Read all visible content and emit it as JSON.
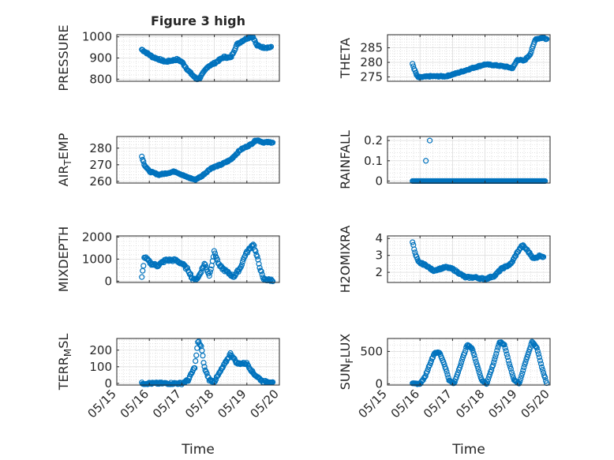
{
  "figure_title": "Figure 3 high",
  "shared_xlabel": "Time",
  "shared_xticks": [
    "05/15",
    "05/16",
    "05/17",
    "05/18",
    "05/19",
    "05/20"
  ],
  "marker_color": "#0072bd",
  "chart_data": [
    {
      "type": "scatter",
      "title": "Figure 3 high",
      "ylabel": "PRESSURE",
      "ylabel_sub": "",
      "ylim": [
        790,
        1010
      ],
      "yticks": [
        800,
        900,
        1000
      ],
      "yticklabels": [
        "800",
        "900",
        "1000"
      ],
      "xlim": [
        0,
        5
      ],
      "grid": true,
      "show_xticklabels": false,
      "keys": [
        [
          0.77,
          940
        ],
        [
          1.1,
          905
        ],
        [
          1.5,
          882
        ],
        [
          1.85,
          893
        ],
        [
          2.0,
          882
        ],
        [
          2.2,
          840
        ],
        [
          2.45,
          800
        ],
        [
          2.55,
          805
        ],
        [
          2.8,
          860
        ],
        [
          3.0,
          875
        ],
        [
          3.3,
          905
        ],
        [
          3.5,
          900
        ],
        [
          3.7,
          965
        ],
        [
          3.9,
          985
        ],
        [
          4.1,
          1000
        ],
        [
          4.2,
          998
        ],
        [
          4.3,
          960
        ],
        [
          4.5,
          950
        ],
        [
          4.75,
          950
        ]
      ],
      "noise": 4
    },
    {
      "type": "scatter",
      "title": "",
      "ylabel": "THETA",
      "ylabel_sub": "",
      "ylim": [
        273.5,
        289.5
      ],
      "yticks": [
        275,
        280,
        285
      ],
      "yticklabels": [
        "275",
        "280",
        "285"
      ],
      "xlim": [
        0,
        5
      ],
      "grid": true,
      "show_xticklabels": false,
      "keys": [
        [
          0.77,
          279.5
        ],
        [
          0.83,
          277.5
        ],
        [
          0.9,
          275.5
        ],
        [
          0.95,
          274.8
        ],
        [
          1.3,
          275.2
        ],
        [
          1.8,
          275.2
        ],
        [
          2.2,
          276.5
        ],
        [
          2.6,
          278
        ],
        [
          3.0,
          279.3
        ],
        [
          3.3,
          279
        ],
        [
          3.6,
          278.6
        ],
        [
          3.85,
          278
        ],
        [
          4.0,
          281
        ],
        [
          4.2,
          280.5
        ],
        [
          4.4,
          283
        ],
        [
          4.55,
          288
        ],
        [
          4.7,
          288.3
        ],
        [
          4.8,
          288.5
        ],
        [
          4.9,
          288
        ]
      ],
      "noise": 0.2
    },
    {
      "type": "scatter",
      "title": "",
      "ylabel": "AIR",
      "ylabel_sub": "T",
      "ylabel_suffix": "EMP",
      "ylim": [
        259,
        287
      ],
      "yticks": [
        260,
        270,
        280
      ],
      "yticklabels": [
        "260",
        "270",
        "280"
      ],
      "xlim": [
        0,
        5
      ],
      "grid": true,
      "show_xticklabels": false,
      "keys": [
        [
          0.77,
          275
        ],
        [
          0.85,
          270
        ],
        [
          1.0,
          266
        ],
        [
          1.3,
          264
        ],
        [
          1.8,
          266
        ],
        [
          2.1,
          263
        ],
        [
          2.4,
          261
        ],
        [
          2.6,
          263
        ],
        [
          2.9,
          268
        ],
        [
          3.2,
          270
        ],
        [
          3.5,
          273
        ],
        [
          3.8,
          279
        ],
        [
          4.1,
          282
        ],
        [
          4.3,
          285
        ],
        [
          4.5,
          283.5
        ],
        [
          4.8,
          283.5
        ]
      ],
      "noise": 0.4
    },
    {
      "type": "scatter",
      "title": "",
      "ylabel": "RAINFALL",
      "ylabel_sub": "",
      "ylim": [
        -0.01,
        0.22
      ],
      "yticks": [
        0,
        0.1,
        0.2
      ],
      "yticklabels": [
        "0",
        "0.1",
        "0.2"
      ],
      "xlim": [
        0,
        5
      ],
      "grid": true,
      "show_xticklabels": false,
      "keys": [
        [
          0.77,
          0
        ],
        [
          4.85,
          0
        ]
      ],
      "noise": 0,
      "extra": [
        [
          1.18,
          0.1
        ],
        [
          1.3,
          0.2
        ]
      ]
    },
    {
      "type": "scatter",
      "title": "",
      "ylabel": "MIXDEPTH",
      "ylabel_sub": "",
      "ylim": [
        -60,
        2050
      ],
      "yticks": [
        0,
        1000,
        2000
      ],
      "yticklabels": [
        "0",
        "1000",
        "2000"
      ],
      "xlim": [
        0,
        5
      ],
      "grid": true,
      "show_xticklabels": false,
      "keys": [
        [
          0.77,
          150
        ],
        [
          0.85,
          1100
        ],
        [
          1.05,
          800
        ],
        [
          1.25,
          700
        ],
        [
          1.5,
          950
        ],
        [
          1.8,
          950
        ],
        [
          2.0,
          800
        ],
        [
          2.2,
          500
        ],
        [
          2.35,
          50
        ],
        [
          2.5,
          150
        ],
        [
          2.7,
          800
        ],
        [
          2.85,
          250
        ],
        [
          3.0,
          1350
        ],
        [
          3.15,
          700
        ],
        [
          3.4,
          400
        ],
        [
          3.6,
          200
        ],
        [
          3.8,
          600
        ],
        [
          3.95,
          1200
        ],
        [
          4.2,
          1700
        ],
        [
          4.35,
          900
        ],
        [
          4.5,
          100
        ],
        [
          4.65,
          50
        ],
        [
          4.8,
          50
        ]
      ],
      "noise": 60
    },
    {
      "type": "scatter",
      "title": "",
      "ylabel": "H2OMIXRA",
      "ylabel_sub": "",
      "ylim": [
        1.4,
        4.15
      ],
      "yticks": [
        2,
        3,
        4
      ],
      "yticklabels": [
        "2",
        "3",
        "4"
      ],
      "xlim": [
        0,
        5
      ],
      "grid": true,
      "show_xticklabels": false,
      "keys": [
        [
          0.77,
          3.8
        ],
        [
          0.85,
          3.1
        ],
        [
          0.95,
          2.6
        ],
        [
          1.2,
          2.4
        ],
        [
          1.4,
          2.1
        ],
        [
          1.8,
          2.3
        ],
        [
          2.0,
          2.2
        ],
        [
          2.4,
          1.7
        ],
        [
          2.7,
          1.7
        ],
        [
          3.0,
          1.6
        ],
        [
          3.3,
          1.8
        ],
        [
          3.5,
          2.2
        ],
        [
          3.8,
          2.5
        ],
        [
          4.0,
          3.2
        ],
        [
          4.15,
          3.6
        ],
        [
          4.3,
          3.3
        ],
        [
          4.5,
          2.8
        ],
        [
          4.7,
          3.0
        ],
        [
          4.8,
          2.9
        ]
      ],
      "noise": 0.05
    },
    {
      "type": "scatter",
      "title": "",
      "ylabel": "TERR",
      "ylabel_sub": "M",
      "ylabel_suffix": "SL",
      "ylim": [
        -10,
        270
      ],
      "yticks": [
        0,
        100,
        200
      ],
      "yticklabels": [
        "0",
        "100",
        "200"
      ],
      "xlim": [
        0,
        5
      ],
      "grid": true,
      "show_xticklabels": true,
      "keys": [
        [
          0.77,
          0
        ],
        [
          2.0,
          0
        ],
        [
          2.2,
          20
        ],
        [
          2.4,
          100
        ],
        [
          2.5,
          255
        ],
        [
          2.6,
          220
        ],
        [
          2.7,
          90
        ],
        [
          2.85,
          20
        ],
        [
          3.0,
          10
        ],
        [
          3.15,
          60
        ],
        [
          3.3,
          110
        ],
        [
          3.5,
          180
        ],
        [
          3.7,
          120
        ],
        [
          4.0,
          120
        ],
        [
          4.2,
          60
        ],
        [
          4.5,
          10
        ],
        [
          4.8,
          10
        ]
      ],
      "noise": 6
    },
    {
      "type": "scatter",
      "title": "",
      "ylabel": "SUN",
      "ylabel_sub": "F",
      "ylabel_suffix": "LUX",
      "ylim": [
        -20,
        700
      ],
      "yticks": [
        0,
        500
      ],
      "yticklabels": [
        "0",
        "500"
      ],
      "xlim": [
        0,
        5
      ],
      "grid": true,
      "show_xticklabels": true,
      "keys": [
        [
          0.77,
          0
        ],
        [
          1.0,
          0
        ],
        [
          1.15,
          100
        ],
        [
          1.3,
          300
        ],
        [
          1.45,
          480
        ],
        [
          1.6,
          480
        ],
        [
          1.75,
          300
        ],
        [
          1.9,
          50
        ],
        [
          2.05,
          0
        ],
        [
          2.25,
          300
        ],
        [
          2.45,
          600
        ],
        [
          2.6,
          550
        ],
        [
          2.75,
          300
        ],
        [
          2.9,
          50
        ],
        [
          3.05,
          0
        ],
        [
          3.25,
          300
        ],
        [
          3.45,
          650
        ],
        [
          3.6,
          600
        ],
        [
          3.75,
          300
        ],
        [
          3.9,
          50
        ],
        [
          4.05,
          0
        ],
        [
          4.25,
          350
        ],
        [
          4.45,
          650
        ],
        [
          4.6,
          550
        ],
        [
          4.75,
          250
        ],
        [
          4.9,
          0
        ]
      ],
      "noise": 8
    }
  ]
}
